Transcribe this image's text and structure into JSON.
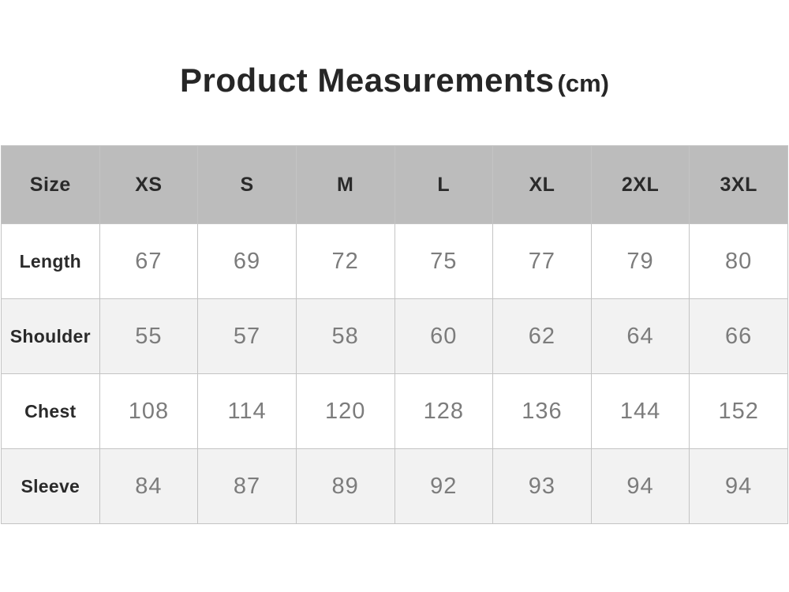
{
  "title": {
    "text": "Product Measurements",
    "unit": "(cm)"
  },
  "chart_data": {
    "type": "table",
    "title": "Product Measurements (cm)",
    "unit": "cm",
    "columns": [
      "Size",
      "XS",
      "S",
      "M",
      "L",
      "XL",
      "2XL",
      "3XL"
    ],
    "rows": [
      {
        "label": "Length",
        "values": [
          67,
          69,
          72,
          75,
          77,
          79,
          80
        ]
      },
      {
        "label": "Shoulder",
        "values": [
          55,
          57,
          58,
          60,
          62,
          64,
          66
        ]
      },
      {
        "label": "Chest",
        "values": [
          108,
          114,
          120,
          128,
          136,
          144,
          152
        ]
      },
      {
        "label": "Sleeve",
        "values": [
          84,
          87,
          89,
          92,
          93,
          94,
          94
        ]
      }
    ]
  },
  "colors": {
    "header_bg": "#bcbcbc",
    "row_bg": "#ffffff",
    "row_alt_bg": "#f2f2f2",
    "border": "#c4c4c4",
    "title_text": "#262626",
    "label_text": "#2a2a2a",
    "value_text": "#7c7c7c"
  }
}
